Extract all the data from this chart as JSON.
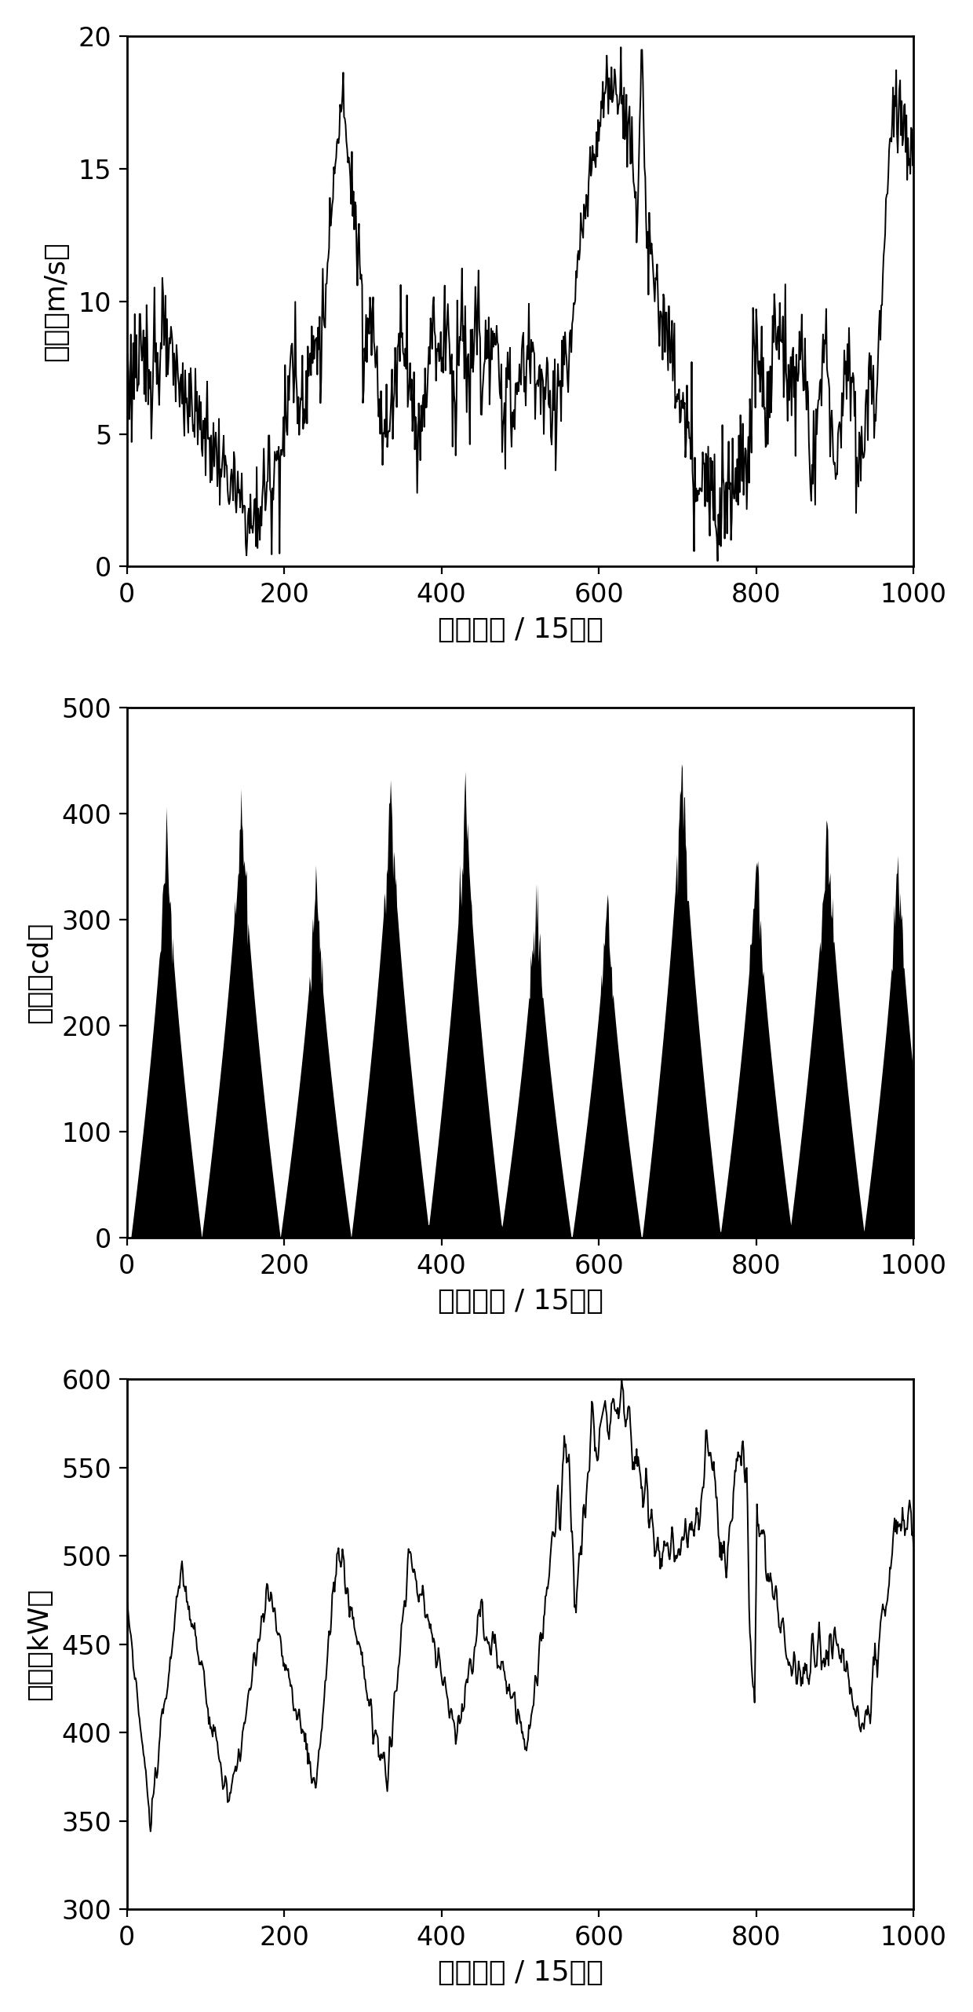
{
  "n_points": 1009,
  "wind_ylim": [
    0,
    20
  ],
  "wind_yticks": [
    0,
    5,
    10,
    15,
    20
  ],
  "light_ylim": [
    0,
    500
  ],
  "light_yticks": [
    0,
    100,
    200,
    300,
    400,
    500
  ],
  "load_ylim": [
    300,
    600
  ],
  "load_yticks": [
    300,
    350,
    400,
    450,
    500,
    550,
    600
  ],
  "xlim": [
    0,
    1000
  ],
  "xticks": [
    0,
    200,
    400,
    600,
    800,
    1000
  ],
  "xlabel": "采样时间 / 15分钟",
  "ylabel_wind": "风速（m/s）",
  "ylabel_light": "光强（cd）",
  "ylabel_load": "负荷（kW）",
  "line_color": "#000000",
  "bg_color": "#ffffff",
  "linewidth": 0.7,
  "figsize": [
    6.2,
    12.81
  ],
  "dpi": 200
}
